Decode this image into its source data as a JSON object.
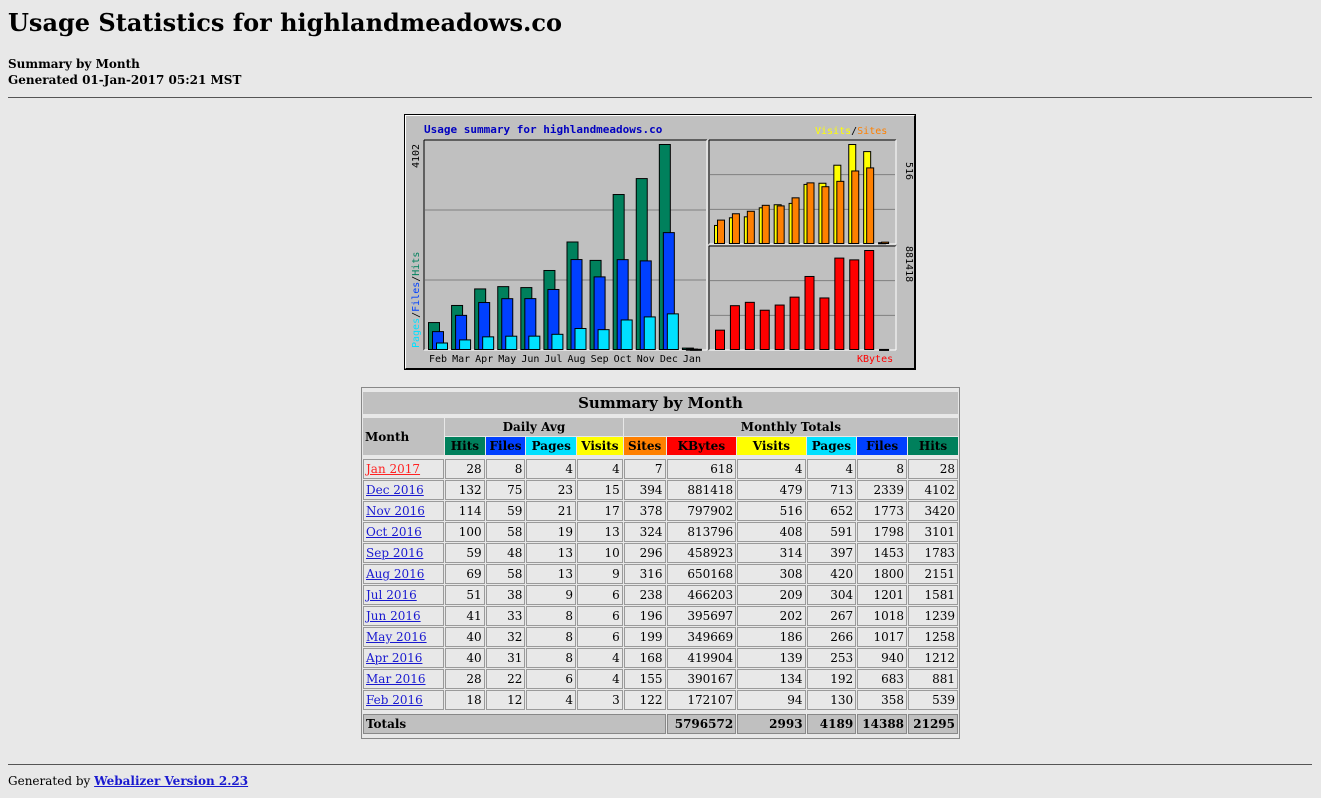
{
  "page": {
    "title": "Usage Statistics for highlandmeadows.co",
    "subtitle": "Summary by Month",
    "generated": "Generated 01-Jan-2017 05:21 MST"
  },
  "colors": {
    "hits": "#00805c",
    "files": "#0040ff",
    "pages": "#00e0ff",
    "visits": "#ffff00",
    "sites": "#ff8000",
    "kbytes": "#ff0000",
    "link": "#1a1ad0",
    "current_month": "#ff2222"
  },
  "chart_data": [
    {
      "type": "bar",
      "title": "Usage summary for highlandmeadows.co",
      "categories": [
        "Feb",
        "Mar",
        "Apr",
        "May",
        "Jun",
        "Jul",
        "Aug",
        "Sep",
        "Oct",
        "Nov",
        "Dec",
        "Jan"
      ],
      "ylabel_parts": [
        "Pages",
        "/",
        "Files",
        "/",
        "Hits"
      ],
      "ymax_label": "4102",
      "ylim": [
        0,
        4102
      ],
      "series": [
        {
          "name": "Hits",
          "values": [
            539,
            881,
            1212,
            1258,
            1239,
            1581,
            2151,
            1783,
            3101,
            3420,
            4102,
            28
          ]
        },
        {
          "name": "Files",
          "values": [
            358,
            683,
            940,
            1017,
            1018,
            1201,
            1800,
            1453,
            1798,
            1773,
            2339,
            8
          ]
        },
        {
          "name": "Pages",
          "values": [
            130,
            192,
            253,
            266,
            267,
            304,
            420,
            397,
            591,
            652,
            713,
            4
          ]
        }
      ]
    },
    {
      "type": "bar",
      "legend_parts": [
        "Visits",
        "/",
        "Sites"
      ],
      "ymax_label": "516",
      "ylim": [
        0,
        516
      ],
      "categories": [
        "Feb",
        "Mar",
        "Apr",
        "May",
        "Jun",
        "Jul",
        "Aug",
        "Sep",
        "Oct",
        "Nov",
        "Dec",
        "Jan"
      ],
      "series": [
        {
          "name": "Visits",
          "values": [
            94,
            134,
            139,
            186,
            202,
            209,
            308,
            314,
            408,
            516,
            479,
            4
          ]
        },
        {
          "name": "Sites",
          "values": [
            122,
            155,
            168,
            199,
            196,
            238,
            316,
            296,
            324,
            378,
            394,
            7
          ]
        }
      ]
    },
    {
      "type": "bar",
      "legend": "KBytes",
      "ymax_label": "881418",
      "ylim": [
        0,
        881418
      ],
      "categories": [
        "Feb",
        "Mar",
        "Apr",
        "May",
        "Jun",
        "Jul",
        "Aug",
        "Sep",
        "Oct",
        "Nov",
        "Dec",
        "Jan"
      ],
      "series": [
        {
          "name": "KBytes",
          "values": [
            172107,
            390167,
            419904,
            349669,
            395697,
            466203,
            650168,
            458923,
            813796,
            797902,
            881418,
            618
          ]
        }
      ]
    }
  ],
  "table": {
    "title": "Summary by Month",
    "month_header": "Month",
    "daily_avg_header": "Daily Avg",
    "monthly_totals_header": "Monthly Totals",
    "daily_cols": [
      "Hits",
      "Files",
      "Pages",
      "Visits"
    ],
    "monthly_cols": [
      "Sites",
      "KBytes",
      "Visits",
      "Pages",
      "Files",
      "Hits"
    ],
    "rows": [
      {
        "month": "Jan 2017",
        "daily": [
          "28",
          "8",
          "4",
          "4"
        ],
        "monthly": [
          "7",
          "618",
          "4",
          "4",
          "8",
          "28"
        ]
      },
      {
        "month": "Dec 2016",
        "daily": [
          "132",
          "75",
          "23",
          "15"
        ],
        "monthly": [
          "394",
          "881418",
          "479",
          "713",
          "2339",
          "4102"
        ]
      },
      {
        "month": "Nov 2016",
        "daily": [
          "114",
          "59",
          "21",
          "17"
        ],
        "monthly": [
          "378",
          "797902",
          "516",
          "652",
          "1773",
          "3420"
        ]
      },
      {
        "month": "Oct 2016",
        "daily": [
          "100",
          "58",
          "19",
          "13"
        ],
        "monthly": [
          "324",
          "813796",
          "408",
          "591",
          "1798",
          "3101"
        ]
      },
      {
        "month": "Sep 2016",
        "daily": [
          "59",
          "48",
          "13",
          "10"
        ],
        "monthly": [
          "296",
          "458923",
          "314",
          "397",
          "1453",
          "1783"
        ]
      },
      {
        "month": "Aug 2016",
        "daily": [
          "69",
          "58",
          "13",
          "9"
        ],
        "monthly": [
          "316",
          "650168",
          "308",
          "420",
          "1800",
          "2151"
        ]
      },
      {
        "month": "Jul 2016",
        "daily": [
          "51",
          "38",
          "9",
          "6"
        ],
        "monthly": [
          "238",
          "466203",
          "209",
          "304",
          "1201",
          "1581"
        ]
      },
      {
        "month": "Jun 2016",
        "daily": [
          "41",
          "33",
          "8",
          "6"
        ],
        "monthly": [
          "196",
          "395697",
          "202",
          "267",
          "1018",
          "1239"
        ]
      },
      {
        "month": "May 2016",
        "daily": [
          "40",
          "32",
          "8",
          "6"
        ],
        "monthly": [
          "199",
          "349669",
          "186",
          "266",
          "1017",
          "1258"
        ]
      },
      {
        "month": "Apr 2016",
        "daily": [
          "40",
          "31",
          "8",
          "4"
        ],
        "monthly": [
          "168",
          "419904",
          "139",
          "253",
          "940",
          "1212"
        ]
      },
      {
        "month": "Mar 2016",
        "daily": [
          "28",
          "22",
          "6",
          "4"
        ],
        "monthly": [
          "155",
          "390167",
          "134",
          "192",
          "683",
          "881"
        ]
      },
      {
        "month": "Feb 2016",
        "daily": [
          "18",
          "12",
          "4",
          "3"
        ],
        "monthly": [
          "122",
          "172107",
          "94",
          "130",
          "358",
          "539"
        ]
      }
    ],
    "totals_label": "Totals",
    "totals": [
      "5796572",
      "2993",
      "4189",
      "14388",
      "21295"
    ]
  },
  "footer": {
    "prefix": "Generated by ",
    "link": "Webalizer Version 2.23"
  }
}
